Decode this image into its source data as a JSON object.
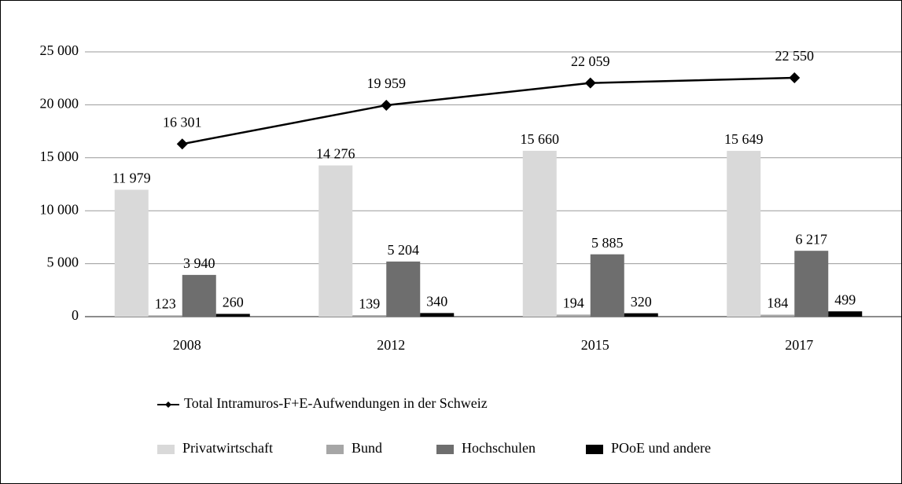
{
  "chart_data": {
    "type": "bar",
    "categories": [
      "2008",
      "2012",
      "2015",
      "2017"
    ],
    "series": [
      {
        "name": "Privatwirtschaft",
        "color": "#d9d9d9",
        "values": [
          11979,
          14276,
          15660,
          15649
        ],
        "value_labels": [
          "11 979",
          "14 276",
          "15 660",
          "15 649"
        ]
      },
      {
        "name": "Bund",
        "color": "#a6a6a6",
        "values": [
          123,
          139,
          194,
          184
        ],
        "value_labels": [
          "123",
          "139",
          "194",
          "184"
        ]
      },
      {
        "name": "Hochschulen",
        "color": "#6e6e6e",
        "values": [
          3940,
          5204,
          5885,
          6217
        ],
        "value_labels": [
          "3 940",
          "5 204",
          "5 885",
          "6 217"
        ]
      },
      {
        "name": "POoE und andere",
        "color": "#000000",
        "values": [
          260,
          340,
          320,
          499
        ],
        "value_labels": [
          "260",
          "340",
          "320",
          "499"
        ]
      },
      {
        "name": "Total Intramuros-F+E-Aufwendungen in der Schweiz",
        "color": "#000000",
        "type": "line",
        "values": [
          16301,
          19959,
          22059,
          22550
        ],
        "value_labels": [
          "16 301",
          "19 959",
          "22 059",
          "22 550"
        ]
      }
    ],
    "ylim": [
      0,
      25000
    ],
    "yticks": [
      0,
      {
        "value": 5000,
        "label": "5 000"
      },
      {
        "value": 10000,
        "label": "10 000"
      },
      {
        "value": 15000,
        "label": "15 000"
      },
      {
        "value": 20000,
        "label": "20 000"
      },
      {
        "value": 25000,
        "label": "25 000"
      }
    ],
    "grid": true
  }
}
